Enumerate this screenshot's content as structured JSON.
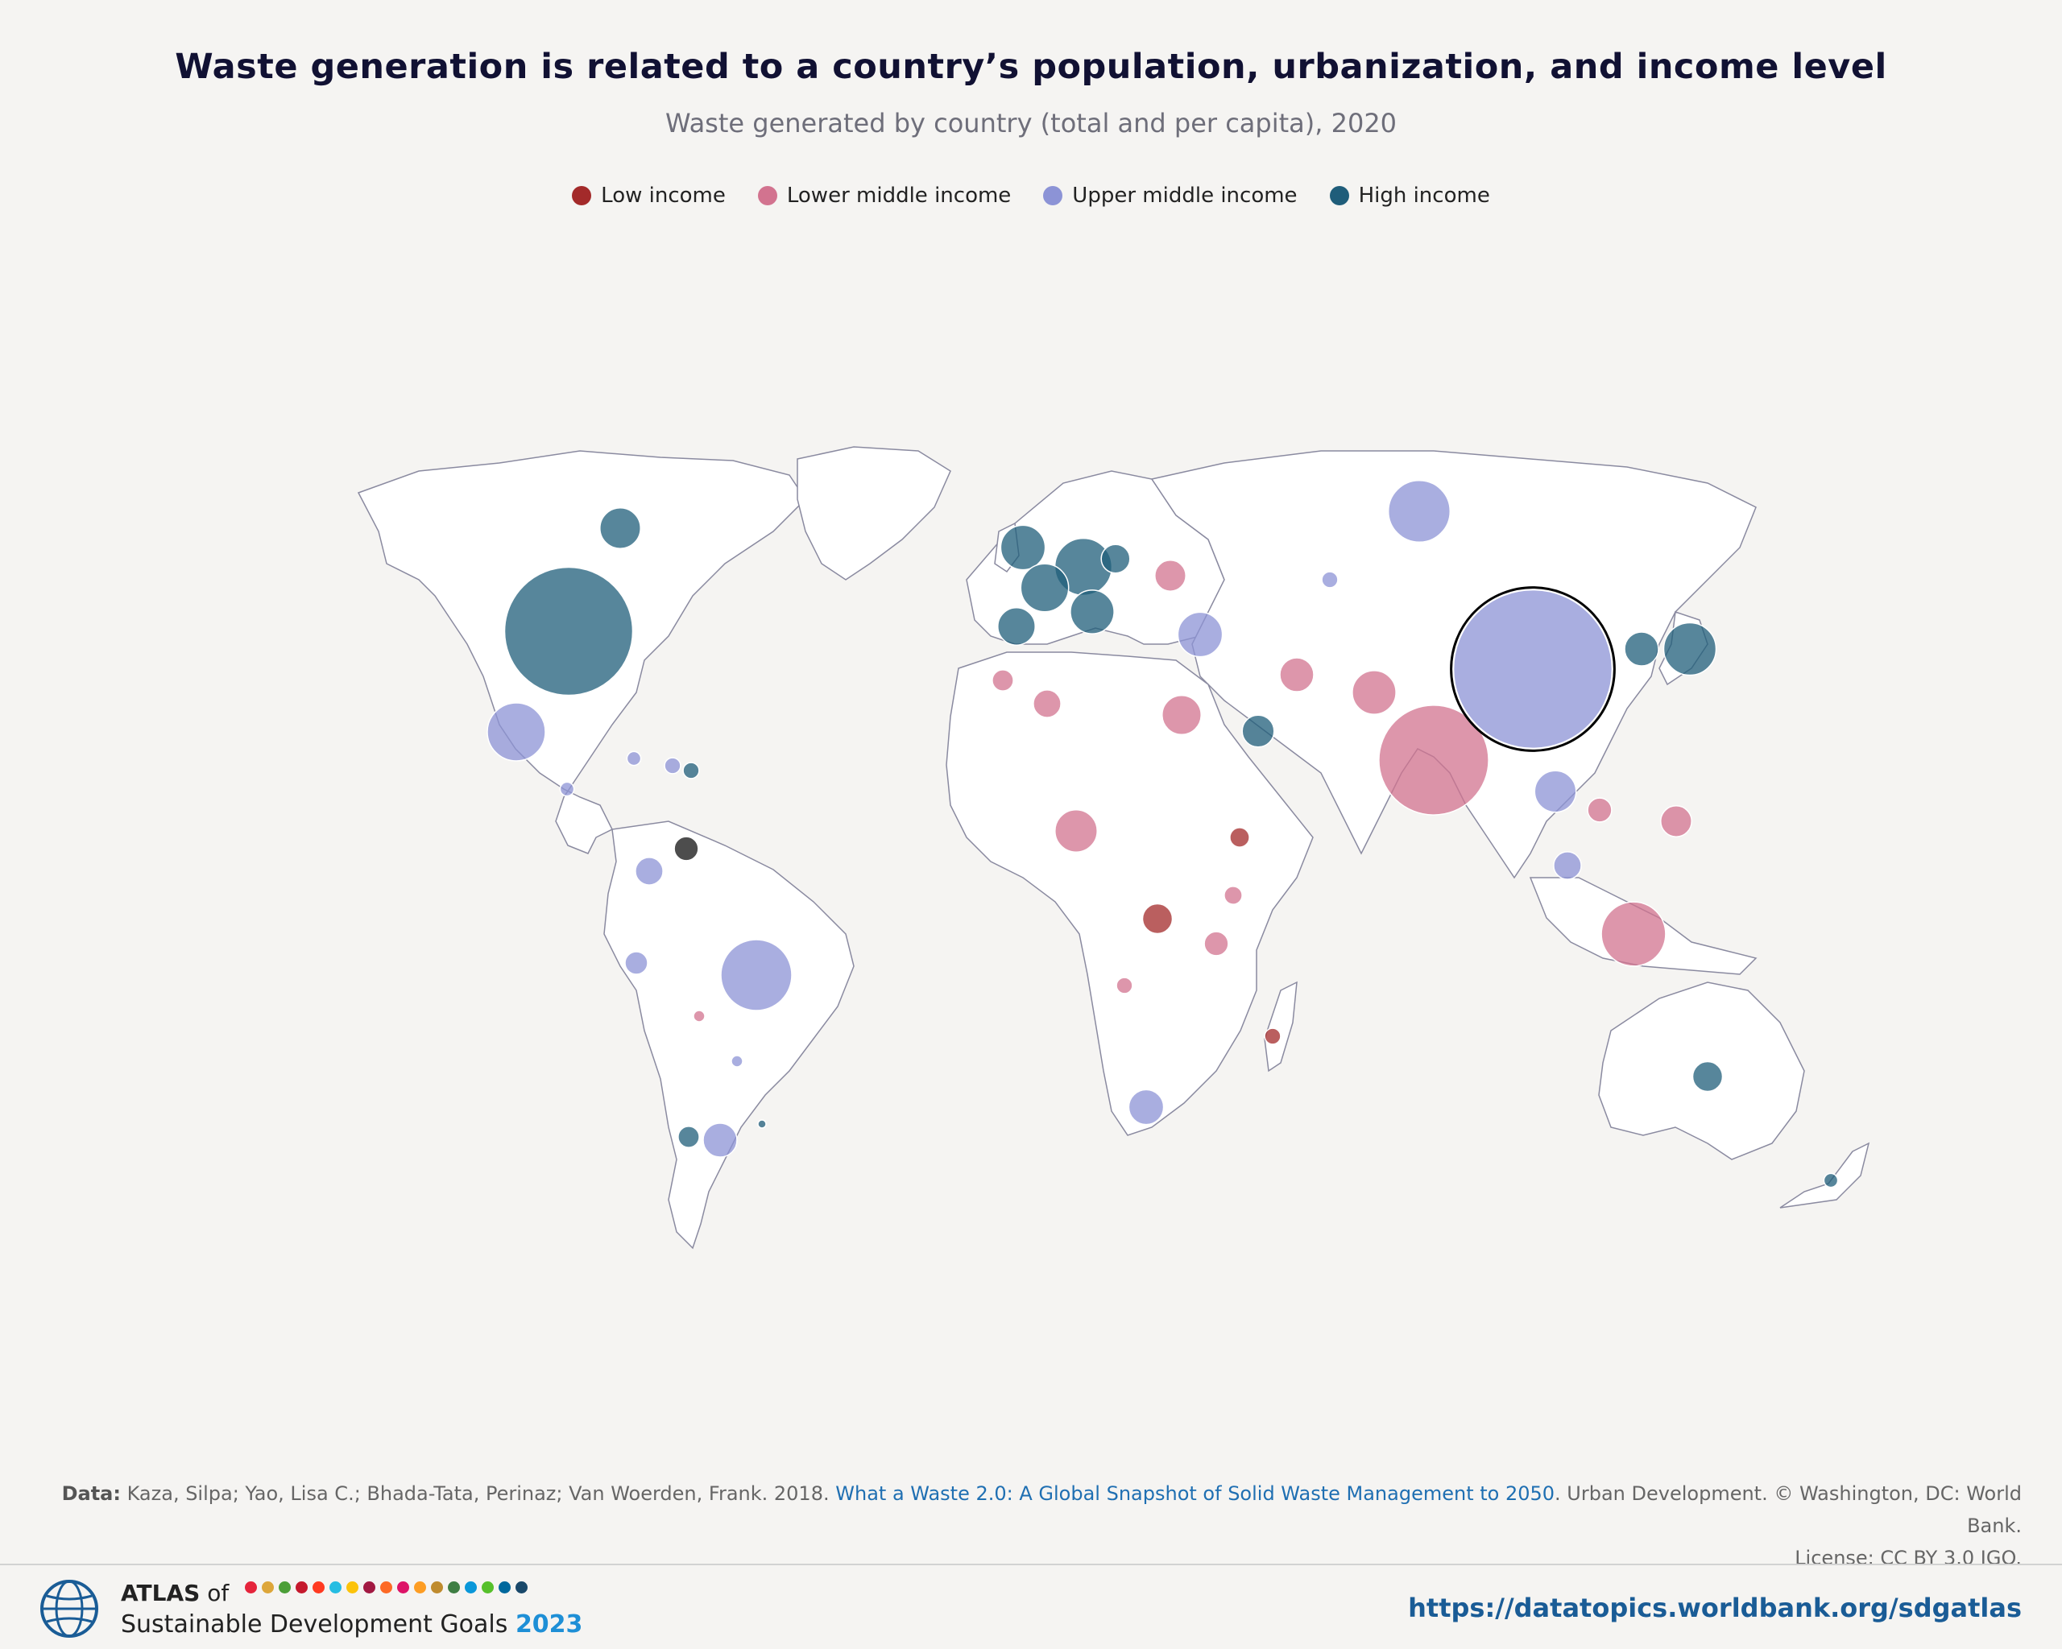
{
  "title": "Waste generation is related to a country’s population, urbanization, and income level",
  "subtitle": "Waste generated by country (total and per capita), 2020",
  "legend": [
    {
      "label": "Low income",
      "color": "#a32a2a"
    },
    {
      "label": "Lower middle income",
      "color": "#d2738f"
    },
    {
      "label": "Upper middle income",
      "color": "#8c93d6"
    },
    {
      "label": "High income",
      "color": "#1f5d7a"
    }
  ],
  "source": {
    "label": "Data:",
    "text": "Kaza, Silpa; Yao, Lisa C.; Bhada-Tata, Perinaz; Van Woerden, Frank. 2018.",
    "link": "What a Waste 2.0: A Global Snapshot of Solid Waste Management to 2050",
    "text2": ". Urban Development. © Washington, DC: World Bank.",
    "license": "License: CC BY 3.0 IGO."
  },
  "footer": {
    "atlas": "ATLAS",
    "of": "of",
    "sdg": "Sustainable Development Goals",
    "year": "2023",
    "url": "https://datatopics.worldbank.org/sdgatlas",
    "dot_colors": [
      "#e5243b",
      "#dda63a",
      "#4c9f38",
      "#c5192d",
      "#ff3a21",
      "#26bde2",
      "#fcc30b",
      "#a21942",
      "#fd6925",
      "#dd1367",
      "#fd9d24",
      "#bf8b2e",
      "#3f7e44",
      "#0a97d9",
      "#56c02b",
      "#00689d",
      "#19486a"
    ]
  },
  "chart_data": {
    "type": "bubble-map",
    "categories": [
      "Low income",
      "Lower middle income",
      "Upper middle income",
      "High income"
    ],
    "bubbles": [
      {
        "country": "United States",
        "group": "High income",
        "value": 258
      },
      {
        "country": "Canada",
        "group": "High income",
        "value": 26
      },
      {
        "country": "Mexico",
        "group": "Upper middle income",
        "value": 53
      },
      {
        "country": "Brazil",
        "group": "Upper middle income",
        "value": 79
      },
      {
        "country": "Argentina",
        "group": "Upper middle income",
        "value": 18
      },
      {
        "country": "Chile",
        "group": "High income",
        "value": 7
      },
      {
        "country": "Colombia",
        "group": "Upper middle income",
        "value": 12
      },
      {
        "country": "Peru",
        "group": "Upper middle income",
        "value": 8
      },
      {
        "country": "Venezuela",
        "group": "Unclassified",
        "value": 9
      },
      {
        "country": "Cuba",
        "group": "Upper middle income",
        "value": 3
      },
      {
        "country": "Dominican Republic",
        "group": "Upper middle income",
        "value": 4
      },
      {
        "country": "Puerto Rico",
        "group": "High income",
        "value": 4
      },
      {
        "country": "Guatemala",
        "group": "Upper middle income",
        "value": 3
      },
      {
        "country": "Bolivia",
        "group": "Lower middle income",
        "value": 2
      },
      {
        "country": "Paraguay",
        "group": "Upper middle income",
        "value": 2
      },
      {
        "country": "Uruguay",
        "group": "High income",
        "value": 1
      },
      {
        "country": "United Kingdom",
        "group": "High income",
        "value": 31
      },
      {
        "country": "Germany",
        "group": "High income",
        "value": 51
      },
      {
        "country": "France",
        "group": "High income",
        "value": 36
      },
      {
        "country": "Italy",
        "group": "High income",
        "value": 30
      },
      {
        "country": "Spain",
        "group": "High income",
        "value": 22
      },
      {
        "country": "Poland",
        "group": "High income",
        "value": 13
      },
      {
        "country": "Ukraine",
        "group": "Lower middle income",
        "value": 15
      },
      {
        "country": "Russian Federation",
        "group": "Upper middle income",
        "value": 60
      },
      {
        "country": "Turkey",
        "group": "Upper middle income",
        "value": 31
      },
      {
        "country": "Iran",
        "group": "Lower middle income",
        "value": 18
      },
      {
        "country": "Saudi Arabia",
        "group": "High income",
        "value": 16
      },
      {
        "country": "Pakistan",
        "group": "Lower middle income",
        "value": 30
      },
      {
        "country": "India",
        "group": "Lower middle income",
        "value": 189
      },
      {
        "country": "China",
        "group": "Upper middle income",
        "value": 395
      },
      {
        "country": "Japan",
        "group": "High income",
        "value": 43
      },
      {
        "country": "Korea, Rep.",
        "group": "High income",
        "value": 18
      },
      {
        "country": "Kazakhstan",
        "group": "Upper middle income",
        "value": 4
      },
      {
        "country": "Thailand",
        "group": "Upper middle income",
        "value": 27
      },
      {
        "country": "Viet Nam",
        "group": "Lower middle income",
        "value": 9
      },
      {
        "country": "Philippines",
        "group": "Lower middle income",
        "value": 15
      },
      {
        "country": "Malaysia",
        "group": "Upper middle income",
        "value": 12
      },
      {
        "country": "Indonesia",
        "group": "Lower middle income",
        "value": 65
      },
      {
        "country": "Australia",
        "group": "High income",
        "value": 14
      },
      {
        "country": "New Zealand",
        "group": "High income",
        "value": 3
      },
      {
        "country": "Egypt",
        "group": "Lower middle income",
        "value": 24
      },
      {
        "country": "Algeria",
        "group": "Lower middle income",
        "value": 12
      },
      {
        "country": "Morocco",
        "group": "Lower middle income",
        "value": 7
      },
      {
        "country": "Nigeria",
        "group": "Lower middle income",
        "value": 28
      },
      {
        "country": "Ethiopia",
        "group": "Low income",
        "value": 6
      },
      {
        "country": "Congo, Dem. Rep.",
        "group": "Low income",
        "value": 14
      },
      {
        "country": "Tanzania",
        "group": "Lower middle income",
        "value": 9
      },
      {
        "country": "Kenya",
        "group": "Lower middle income",
        "value": 5
      },
      {
        "country": "South Africa",
        "group": "Upper middle income",
        "value": 19
      },
      {
        "country": "Madagascar",
        "group": "Low income",
        "value": 4
      },
      {
        "country": "Angola",
        "group": "Lower middle income",
        "value": 4
      }
    ]
  }
}
